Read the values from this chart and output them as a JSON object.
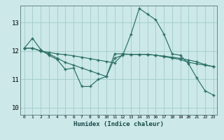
{
  "xlabel": "Humidex (Indice chaleur)",
  "bg_color": "#cce8e8",
  "grid_color": "#a0cccc",
  "line_color": "#2a6e65",
  "xlim": [
    -0.5,
    23.5
  ],
  "ylim": [
    9.75,
    13.6
  ],
  "yticks": [
    10,
    11,
    12,
    13
  ],
  "xticks": [
    0,
    1,
    2,
    3,
    4,
    5,
    6,
    7,
    8,
    9,
    10,
    11,
    12,
    13,
    14,
    15,
    16,
    17,
    18,
    19,
    20,
    21,
    22,
    23
  ],
  "series": [
    [
      12.1,
      12.45,
      12.05,
      11.85,
      11.7,
      11.35,
      11.4,
      10.75,
      10.75,
      11.0,
      11.1,
      11.75,
      11.85,
      12.6,
      13.5,
      13.3,
      13.1,
      12.6,
      11.9,
      11.85,
      11.55,
      11.05,
      10.6,
      10.45
    ],
    [
      12.1,
      12.1,
      12.0,
      11.9,
      11.75,
      11.6,
      11.5,
      11.4,
      11.3,
      11.2,
      11.1,
      11.9,
      11.9,
      11.88,
      11.88,
      11.88,
      11.85,
      11.8,
      11.75,
      11.7,
      11.6,
      11.55,
      11.5,
      11.45
    ],
    [
      12.1,
      12.1,
      12.0,
      11.95,
      11.9,
      11.87,
      11.83,
      11.78,
      11.73,
      11.68,
      11.63,
      11.58,
      11.88,
      11.88,
      11.88,
      11.88,
      11.85,
      11.82,
      11.78,
      11.74,
      11.68,
      11.62,
      11.52,
      11.45
    ]
  ]
}
